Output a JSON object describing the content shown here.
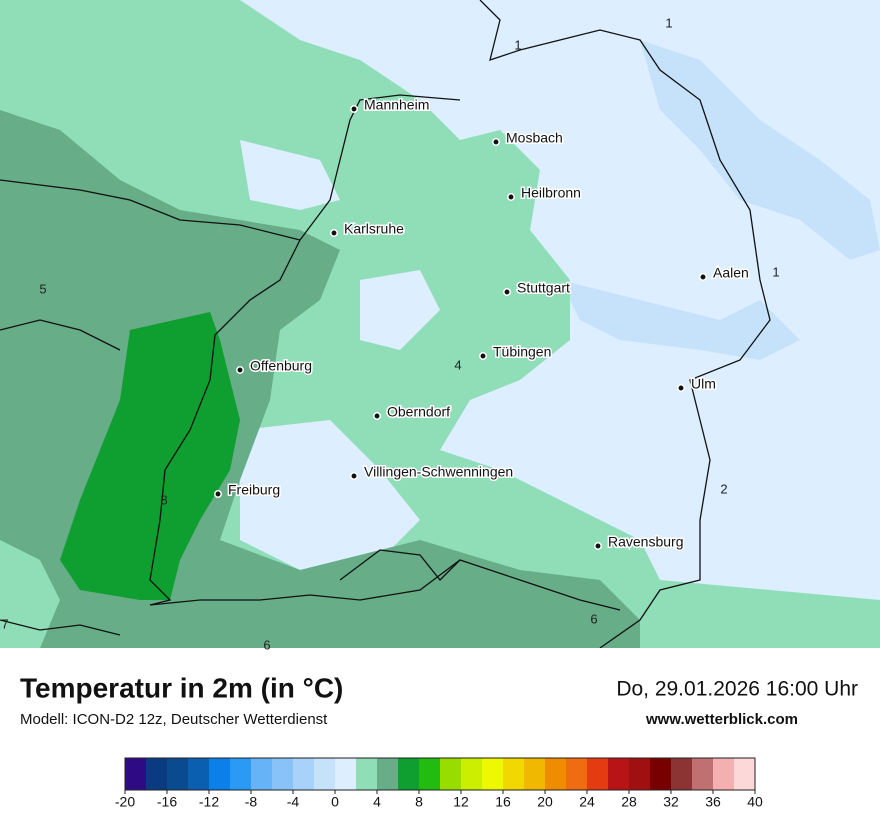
{
  "title": "Temperatur in 2m (in °C)",
  "subtitle": "Modell: ICON-D2 12z, Deutscher Wetterdienst",
  "datetime": "Do, 29.01.2026 16:00 Uhr",
  "website": "www.wetterblick.com",
  "cities": [
    "Mannheim",
    "Mosbach",
    "Heilbronn",
    "Karlsruhe",
    "Aalen",
    "Stuttgart",
    "Tübingen",
    "Offenburg",
    "Ulm",
    "Oberndorf",
    "Villingen-Schwenningen",
    "Freiburg",
    "Ravensburg"
  ],
  "contour_labels": [
    "1",
    "1",
    "5",
    "4",
    "1",
    "2",
    "8",
    "6",
    "6",
    "7"
  ],
  "legend": {
    "min": -20,
    "max": 40,
    "colors": [
      "#2e0a85",
      "#0a3a80",
      "#0a4a8f",
      "#0a5fb0",
      "#0a80e8",
      "#2a9af5",
      "#66b4f7",
      "#88c2f7",
      "#a8d2f9",
      "#c6e2fb",
      "#dceeff",
      "#90deb8",
      "#66ad88",
      "#0f9e30",
      "#22bb10",
      "#99dd00",
      "#ccee00",
      "#eef800",
      "#f0d800",
      "#f0b800",
      "#f08c00",
      "#f06c10",
      "#e43c10",
      "#b81418",
      "#a01010",
      "#780000",
      "#8c3434",
      "#c07070",
      "#f4b0b0",
      "#fcd8d8"
    ],
    "ticks": [
      -20,
      -16,
      -12,
      -8,
      -4,
      0,
      4,
      8,
      12,
      16,
      20,
      24,
      28,
      32,
      36,
      40
    ]
  }
}
